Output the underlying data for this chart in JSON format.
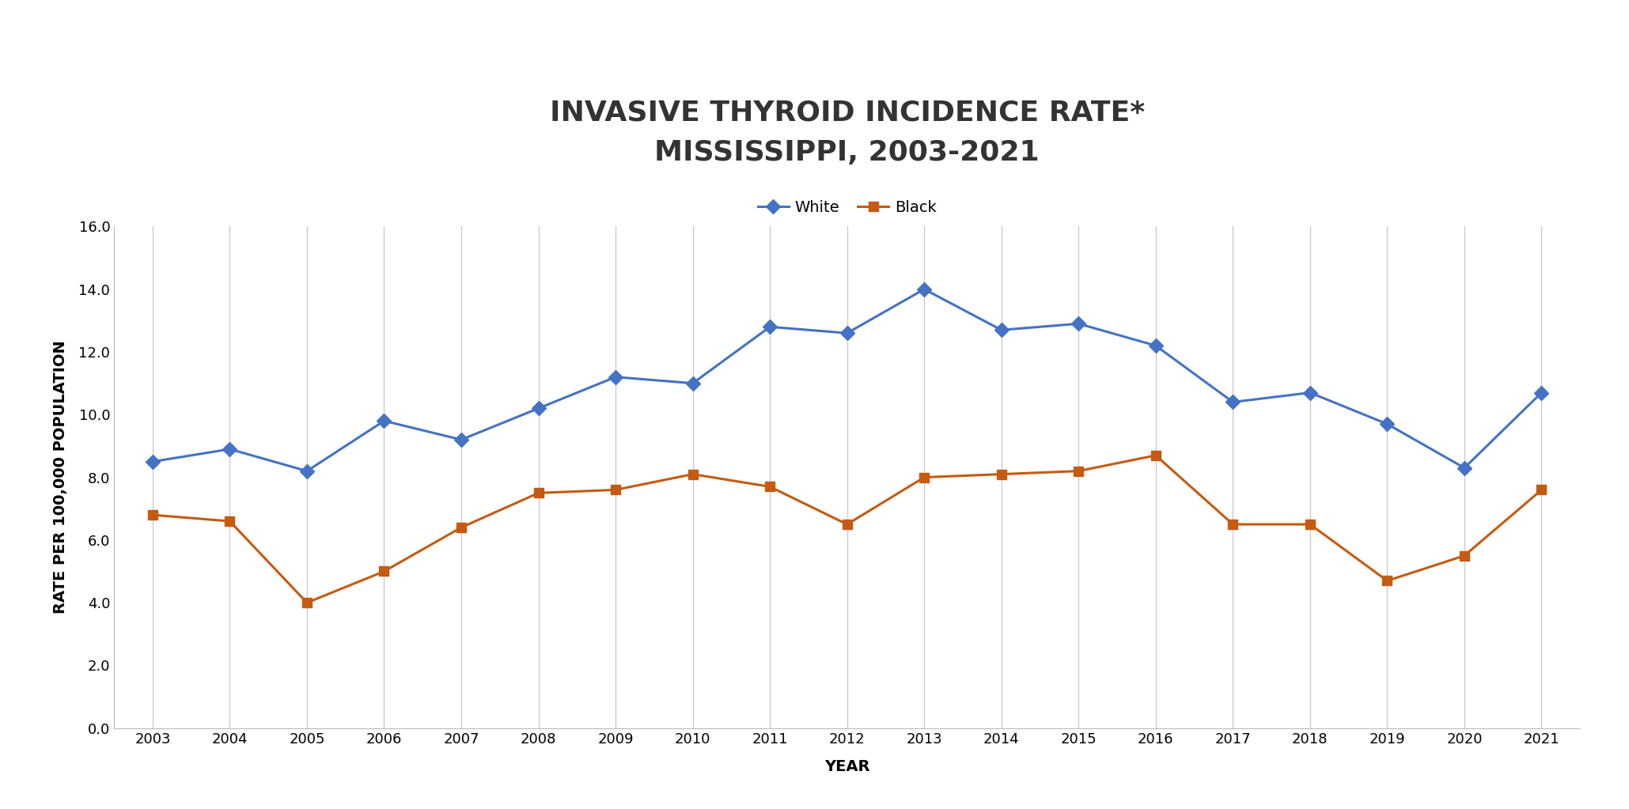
{
  "title": "INVASIVE THYROID INCIDENCE RATE*\nMISSISSIPPI, 2003-2021",
  "xlabel": "YEAR",
  "ylabel": "RATE PER 100,000 POPULATION",
  "years": [
    2003,
    2004,
    2005,
    2006,
    2007,
    2008,
    2009,
    2010,
    2011,
    2012,
    2013,
    2014,
    2015,
    2016,
    2017,
    2018,
    2019,
    2020,
    2021
  ],
  "white": [
    8.5,
    8.9,
    8.2,
    9.8,
    9.2,
    10.2,
    11.2,
    11.0,
    12.8,
    12.6,
    14.0,
    12.7,
    12.9,
    12.2,
    10.4,
    10.7,
    9.7,
    8.3,
    10.7
  ],
  "black": [
    6.8,
    6.6,
    4.0,
    5.0,
    6.4,
    7.5,
    7.6,
    8.1,
    7.7,
    6.5,
    8.0,
    8.1,
    8.2,
    8.7,
    6.5,
    6.5,
    4.7,
    5.5,
    7.6
  ],
  "white_color": "#4472C4",
  "black_color": "#C55A11",
  "ylim": [
    0,
    16.0
  ],
  "yticks": [
    0.0,
    2.0,
    4.0,
    6.0,
    8.0,
    10.0,
    12.0,
    14.0,
    16.0
  ],
  "background_color": "#ffffff",
  "grid_color": "#c8c8c8",
  "title_fontsize": 26,
  "label_fontsize": 14,
  "tick_fontsize": 13,
  "legend_fontsize": 14,
  "line_width": 2.2,
  "marker_size": 9
}
